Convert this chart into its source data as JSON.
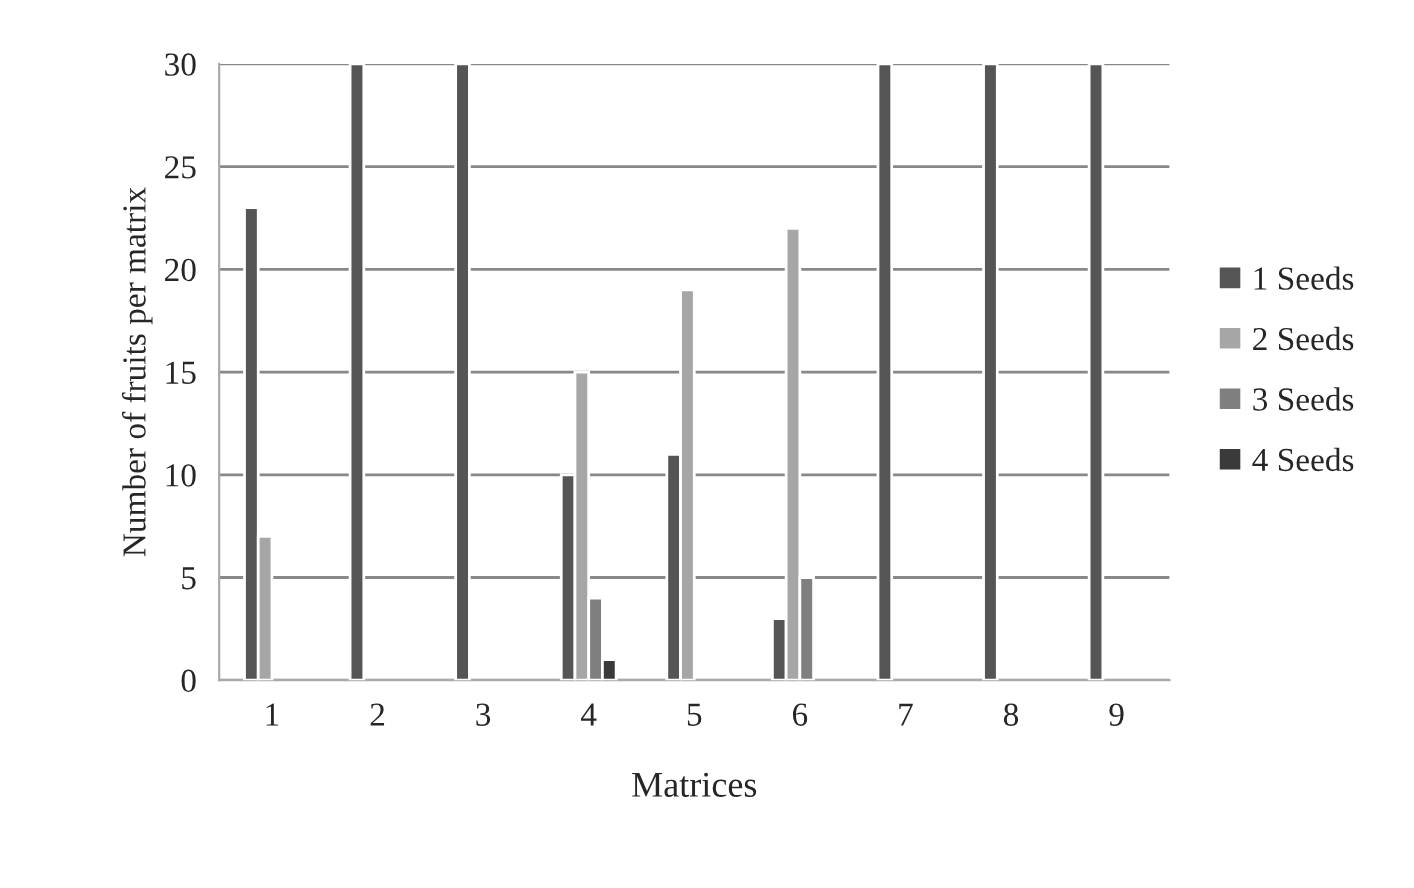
{
  "chart_data": {
    "type": "bar",
    "xlabel": "Matrices",
    "ylabel": "Number of fruits per matrix",
    "categories": [
      "1",
      "2",
      "3",
      "4",
      "5",
      "6",
      "7",
      "8",
      "9"
    ],
    "series": [
      {
        "name": "1 Seeds",
        "color": "#555555",
        "values": [
          23,
          30,
          30,
          10,
          11,
          3,
          30,
          30,
          30
        ]
      },
      {
        "name": "2 Seeds",
        "color": "#a6a6a6",
        "values": [
          7,
          null,
          null,
          15,
          19,
          22,
          null,
          null,
          null
        ]
      },
      {
        "name": "3 Seeds",
        "color": "#7f7f7f",
        "values": [
          null,
          null,
          null,
          4,
          null,
          5,
          null,
          null,
          null
        ]
      },
      {
        "name": "4 Seeds",
        "color": "#3a3a3a",
        "values": [
          null,
          null,
          null,
          1,
          null,
          null,
          null,
          null,
          null
        ]
      }
    ],
    "ylim": [
      0,
      30
    ],
    "yticks": [
      0,
      5,
      10,
      15,
      20,
      25,
      30
    ],
    "grid": "y",
    "legend": "right"
  }
}
